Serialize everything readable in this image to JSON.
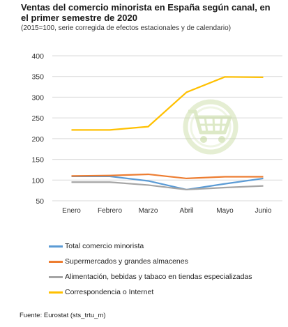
{
  "title": "Ventas del comercio minorista  en España según canal, en el primer semestre de 2020",
  "subtitle": "(2015=100,  serie corregida de efectos estacionales y de calendario)",
  "source": "Fuente: Eurostat (sts_trtu_m)",
  "icon": "shopping-cart-at-icon",
  "chart_data": {
    "type": "line",
    "categories": [
      "Enero",
      "Febrero",
      "Marzo",
      "Abril",
      "Mayo",
      "Junio"
    ],
    "ylim": [
      50,
      400
    ],
    "yticks": [
      "50",
      "100",
      "150",
      "200",
      "250",
      "300",
      "350",
      "400"
    ],
    "grid": true,
    "legend_position": "bottom",
    "series": [
      {
        "name": "Total comercio minorista",
        "color": "#5b9bd5",
        "values": [
          109,
          109,
          98,
          77,
          91,
          104
        ]
      },
      {
        "name": "Supermercados y grandes almacenes",
        "color": "#ed7d31",
        "values": [
          110,
          111,
          114,
          104,
          108,
          108
        ]
      },
      {
        "name": "Alimentación, bebidas y tabaco en tiendas especializadas",
        "color": "#a5a5a5",
        "values": [
          95,
          95,
          88,
          77,
          82,
          86
        ]
      },
      {
        "name": "Correspondencia o Internet",
        "color": "#ffc000",
        "values": [
          221,
          221,
          229,
          312,
          349,
          348
        ]
      }
    ]
  }
}
